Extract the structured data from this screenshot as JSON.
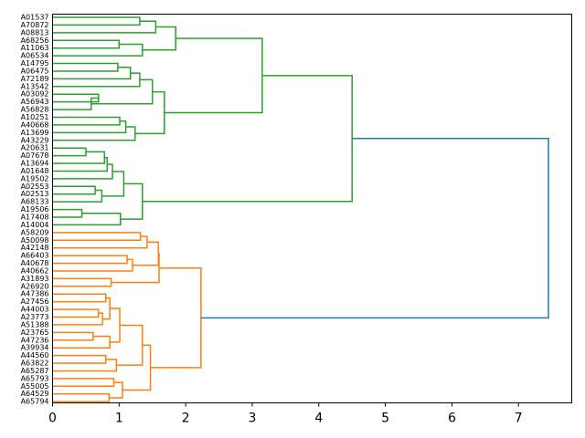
{
  "chart_data": {
    "type": "dendrogram",
    "orientation": "right",
    "title": "",
    "xlabel": "",
    "ylabel": "",
    "xlim": [
      0,
      7.8
    ],
    "x_ticks": [
      "0",
      "1",
      "2",
      "3",
      "4",
      "5",
      "6",
      "7"
    ],
    "grid": false,
    "leaves": [
      "A01537",
      "A70872",
      "A08813",
      "A68256",
      "A11063",
      "A06534",
      "A14795",
      "A06475",
      "A72189",
      "A13542",
      "A03092",
      "A56943",
      "A56828",
      "A10251",
      "A40668",
      "A13699",
      "A43229",
      "A20631",
      "A07678",
      "A13694",
      "A01648",
      "A19502",
      "A02553",
      "A02513",
      "A68133",
      "A19506",
      "A17408",
      "A14004",
      "A58209",
      "A50098",
      "A42148",
      "A66403",
      "A40678",
      "A40662",
      "A31893",
      "A26920",
      "A47386",
      "A27456",
      "A44003",
      "A23773",
      "A51388",
      "A23765",
      "A47236",
      "A39934",
      "A44560",
      "A63822",
      "A65287",
      "A65793",
      "A55005",
      "A64529",
      "A65794"
    ],
    "colors": {
      "cluster_1": "#2ca02c",
      "cluster_2": "#ff7f0e",
      "above_threshold": "#1f77b4",
      "axis": "#000000"
    },
    "merges": [
      {
        "a": "A01537",
        "b": "A70872",
        "h": 1.31,
        "color": "cluster_1"
      },
      {
        "a": "c0",
        "b": "A08813",
        "h": 1.55,
        "color": "cluster_1"
      },
      {
        "a": "A68256",
        "b": "A11063",
        "h": 1.0,
        "color": "cluster_1"
      },
      {
        "a": "c2",
        "b": "A06534",
        "h": 1.35,
        "color": "cluster_1"
      },
      {
        "a": "c1",
        "b": "c3",
        "h": 1.85,
        "color": "cluster_1"
      },
      {
        "a": "A14795",
        "b": "A06475",
        "h": 0.98,
        "color": "cluster_1"
      },
      {
        "a": "c5",
        "b": "A72189",
        "h": 1.17,
        "color": "cluster_1"
      },
      {
        "a": "c6",
        "b": "A13542",
        "h": 1.31,
        "color": "cluster_1"
      },
      {
        "a": "A03092",
        "b": "A56943",
        "h": 0.69,
        "color": "cluster_1"
      },
      {
        "a": "c8",
        "b": "A56828",
        "h": 0.58,
        "color": "cluster_1",
        "note": "non-monotone in image"
      },
      {
        "a": "c7",
        "b": "c9",
        "h": 1.5,
        "color": "cluster_1"
      },
      {
        "a": "A10251",
        "b": "A40668",
        "h": 1.01,
        "color": "cluster_1"
      },
      {
        "a": "c11",
        "b": "A13699",
        "h": 1.1,
        "color": "cluster_1"
      },
      {
        "a": "c12",
        "b": "A43229",
        "h": 1.24,
        "color": "cluster_1"
      },
      {
        "a": "c10",
        "b": "c13",
        "h": 1.68,
        "color": "cluster_1"
      },
      {
        "a": "c4",
        "b": "c14",
        "h": 3.15,
        "color": "cluster_1"
      },
      {
        "a": "A20631",
        "b": "A07678",
        "h": 0.5,
        "color": "cluster_1"
      },
      {
        "a": "c16",
        "b": "A13694",
        "h": 0.78,
        "color": "cluster_1"
      },
      {
        "a": "c17",
        "b": "A01648",
        "h": 0.82,
        "color": "cluster_1"
      },
      {
        "a": "c18",
        "b": "A19502",
        "h": 0.9,
        "color": "cluster_1"
      },
      {
        "a": "A02553",
        "b": "A02513",
        "h": 0.64,
        "color": "cluster_1"
      },
      {
        "a": "c20",
        "b": "A68133",
        "h": 0.74,
        "color": "cluster_1"
      },
      {
        "a": "c19",
        "b": "c21",
        "h": 1.07,
        "color": "cluster_1"
      },
      {
        "a": "A19506",
        "b": "A17408",
        "h": 0.44,
        "color": "cluster_1"
      },
      {
        "a": "c23",
        "b": "A14004",
        "h": 1.02,
        "color": "cluster_1"
      },
      {
        "a": "c22",
        "b": "c24",
        "h": 1.35,
        "color": "cluster_1"
      },
      {
        "a": "c15",
        "b": "c25",
        "h": 4.5,
        "color": "cluster_1"
      },
      {
        "a": "A58209",
        "b": "A50098",
        "h": 1.32,
        "color": "cluster_2"
      },
      {
        "a": "c27",
        "b": "A42148",
        "h": 1.42,
        "color": "cluster_2"
      },
      {
        "a": "A66403",
        "b": "A40678",
        "h": 1.12,
        "color": "cluster_2"
      },
      {
        "a": "c29",
        "b": "A40662",
        "h": 1.2,
        "color": "cluster_2"
      },
      {
        "a": "c28",
        "b": "c30",
        "h": 1.59,
        "color": "cluster_2"
      },
      {
        "a": "A31893",
        "b": "A26920",
        "h": 0.88,
        "color": "cluster_2"
      },
      {
        "a": "c31",
        "b": "c32",
        "h": 1.6,
        "color": "cluster_2"
      },
      {
        "a": "A47386",
        "b": "A27456",
        "h": 0.8,
        "color": "cluster_2"
      },
      {
        "a": "A44003",
        "b": "A23773",
        "h": 0.69,
        "color": "cluster_2"
      },
      {
        "a": "c35",
        "b": "A51388",
        "h": 0.75,
        "color": "cluster_2"
      },
      {
        "a": "c34",
        "b": "c36",
        "h": 0.86,
        "color": "cluster_2"
      },
      {
        "a": "A23765",
        "b": "A47236",
        "h": 0.61,
        "color": "cluster_2"
      },
      {
        "a": "c38",
        "b": "A39934",
        "h": 0.86,
        "color": "cluster_2"
      },
      {
        "a": "c37",
        "b": "c39",
        "h": 1.01,
        "color": "cluster_2"
      },
      {
        "a": "A44560",
        "b": "A63822",
        "h": 0.8,
        "color": "cluster_2"
      },
      {
        "a": "c41",
        "b": "A65287",
        "h": 0.96,
        "color": "cluster_2"
      },
      {
        "a": "c40",
        "b": "c42",
        "h": 1.35,
        "color": "cluster_2"
      },
      {
        "a": "A65793",
        "b": "A55005",
        "h": 0.92,
        "color": "cluster_2"
      },
      {
        "a": "A64529",
        "b": "A65794",
        "h": 0.85,
        "color": "cluster_2"
      },
      {
        "a": "c44",
        "b": "c45",
        "h": 1.05,
        "color": "cluster_2"
      },
      {
        "a": "c43",
        "b": "c46",
        "h": 1.47,
        "color": "cluster_2"
      },
      {
        "a": "c33",
        "b": "c47",
        "h": 2.23,
        "color": "cluster_2"
      },
      {
        "a": "c26",
        "b": "c48",
        "h": 7.45,
        "color": "above_threshold"
      }
    ]
  }
}
